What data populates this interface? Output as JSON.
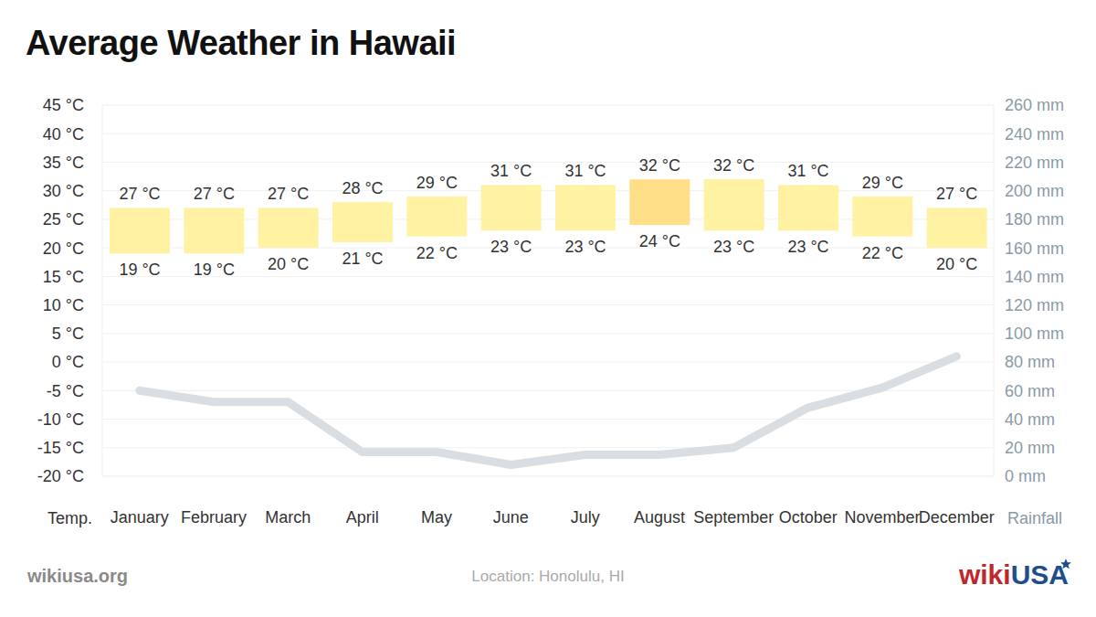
{
  "chart_data": {
    "type": "bar",
    "title": "Average Weather in Hawaii",
    "categories": [
      "January",
      "February",
      "March",
      "April",
      "May",
      "June",
      "July",
      "August",
      "September",
      "October",
      "November",
      "December"
    ],
    "ylabel": "Temp.",
    "ylim": [
      -20,
      45
    ],
    "yticks": [
      {
        "value": -20,
        "label": "-20 °C"
      },
      {
        "value": -15,
        "label": "-15 °C"
      },
      {
        "value": -10,
        "label": "-10 °C"
      },
      {
        "value": -5,
        "label": "-5 °C"
      },
      {
        "value": 0,
        "label": "0 °C"
      },
      {
        "value": 5,
        "label": "5 °C"
      },
      {
        "value": 10,
        "label": "10 °C"
      },
      {
        "value": 15,
        "label": "15 °C"
      },
      {
        "value": 20,
        "label": "20 °C"
      },
      {
        "value": 25,
        "label": "25 °C"
      },
      {
        "value": 30,
        "label": "30 °C"
      },
      {
        "value": 35,
        "label": "35 °C"
      },
      {
        "value": 40,
        "label": "40 °C"
      },
      {
        "value": 45,
        "label": "45 °C"
      }
    ],
    "y2label": "Rainfall",
    "y2lim": [
      0,
      260
    ],
    "y2ticks": [
      {
        "value": 0,
        "label": "0 mm"
      },
      {
        "value": 20,
        "label": "20 mm"
      },
      {
        "value": 40,
        "label": "40 mm"
      },
      {
        "value": 60,
        "label": "60 mm"
      },
      {
        "value": 80,
        "label": "80 mm"
      },
      {
        "value": 100,
        "label": "100 mm"
      },
      {
        "value": 120,
        "label": "120 mm"
      },
      {
        "value": 140,
        "label": "140 mm"
      },
      {
        "value": 160,
        "label": "160 mm"
      },
      {
        "value": 180,
        "label": "180 mm"
      },
      {
        "value": 200,
        "label": "200 mm"
      },
      {
        "value": 220,
        "label": "220 mm"
      },
      {
        "value": 240,
        "label": "240 mm"
      },
      {
        "value": 260,
        "label": "260 mm"
      }
    ],
    "grid": true,
    "data_labels": true,
    "series": [
      {
        "type": "bar",
        "low": [
          19,
          19,
          20,
          21,
          22,
          23,
          23,
          24,
          23,
          23,
          22,
          20
        ],
        "high": [
          27,
          27,
          27,
          28,
          29,
          31,
          31,
          32,
          32,
          31,
          29,
          27
        ],
        "low_labels": [
          "19 °C",
          "19 °C",
          "20 °C",
          "21 °C",
          "22 °C",
          "23 °C",
          "23 °C",
          "24 °C",
          "23 °C",
          "23 °C",
          "22 °C",
          "20 °C"
        ],
        "high_labels": [
          "27 °C",
          "27 °C",
          "27 °C",
          "28 °C",
          "29 °C",
          "31 °C",
          "31 °C",
          "32 °C",
          "32 °C",
          "31 °C",
          "29 °C",
          "27 °C"
        ],
        "colors": [
          "#fff2a3",
          "#fff2a3",
          "#fff2a3",
          "#fff2a3",
          "#fff2a3",
          "#fff2a3",
          "#fff2a3",
          "#ffdf88",
          "#fff2a3",
          "#fff2a3",
          "#fff2a3",
          "#fff2a3"
        ]
      },
      {
        "type": "line",
        "axis": "y2",
        "values": [
          60,
          52,
          52,
          17,
          17,
          8,
          15,
          15,
          20,
          48,
          62,
          84
        ],
        "color": "#d9dee2"
      }
    ]
  },
  "footer": {
    "source": "wikiusa.org",
    "location": "Location: Honolulu, HI",
    "logo": [
      "wiki",
      "USA"
    ]
  }
}
